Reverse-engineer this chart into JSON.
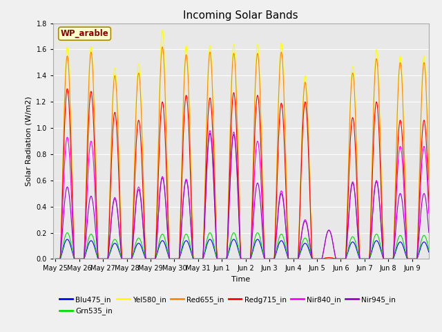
{
  "title": "Incoming Solar Bands",
  "xlabel": "Time",
  "ylabel": "Solar Radiation (W/m2)",
  "ylim": [
    0,
    1.8
  ],
  "wp_label": "WP_arable",
  "xtick_labels": [
    "May 25",
    "May 26",
    "May 27",
    "May 28",
    "May 29",
    "May 30",
    "May 31",
    "Jun 1",
    "Jun 2",
    "Jun 3",
    "Jun 4",
    "Jun 5",
    "Jun 6",
    "Jun 7",
    "Jun 8",
    "Jun 9"
  ],
  "bg_color": "#e8e8e8",
  "grid_color": "#ffffff",
  "fig_bg": "#f0f0f0",
  "series_order": [
    "Blu475_in",
    "Grn535_in",
    "Yel580_in",
    "Red655_in",
    "Redg715_in",
    "Nir840_in",
    "Nir945_in"
  ],
  "colors": {
    "Blu475_in": "#0000ff",
    "Grn535_in": "#00dd00",
    "Yel580_in": "#ffff00",
    "Red655_in": "#ff8800",
    "Redg715_in": "#ff0000",
    "Nir840_in": "#ff00ff",
    "Nir945_in": "#9900cc"
  },
  "yel_peaks": [
    1.62,
    1.62,
    1.46,
    1.49,
    1.75,
    1.63,
    1.63,
    1.64,
    1.64,
    1.65,
    1.4,
    0.01,
    1.47,
    1.6,
    1.55,
    1.55
  ],
  "red_peaks": [
    1.55,
    1.58,
    1.4,
    1.42,
    1.62,
    1.56,
    1.58,
    1.57,
    1.57,
    1.58,
    1.35,
    0.01,
    1.42,
    1.53,
    1.5,
    1.5
  ],
  "redg_peaks": [
    1.3,
    1.28,
    1.12,
    1.06,
    1.2,
    1.25,
    1.23,
    1.27,
    1.25,
    1.19,
    1.2,
    0.01,
    1.08,
    1.2,
    1.06,
    1.06
  ],
  "nir840_peaks": [
    0.93,
    0.9,
    0.47,
    0.55,
    0.63,
    0.61,
    0.98,
    0.97,
    0.9,
    0.52,
    0.3,
    0.22,
    0.59,
    0.6,
    0.86,
    0.86
  ],
  "nir945_peaks": [
    0.55,
    0.48,
    0.46,
    0.53,
    0.62,
    0.6,
    0.96,
    0.95,
    0.58,
    0.5,
    0.29,
    0.22,
    0.58,
    0.59,
    0.5,
    0.5
  ],
  "blu_peaks": [
    0.15,
    0.14,
    0.12,
    0.12,
    0.14,
    0.14,
    0.15,
    0.15,
    0.15,
    0.14,
    0.12,
    0.01,
    0.13,
    0.14,
    0.13,
    0.13
  ],
  "grn_peaks": [
    0.2,
    0.19,
    0.15,
    0.16,
    0.19,
    0.19,
    0.2,
    0.2,
    0.2,
    0.19,
    0.16,
    0.01,
    0.17,
    0.19,
    0.18,
    0.18
  ]
}
